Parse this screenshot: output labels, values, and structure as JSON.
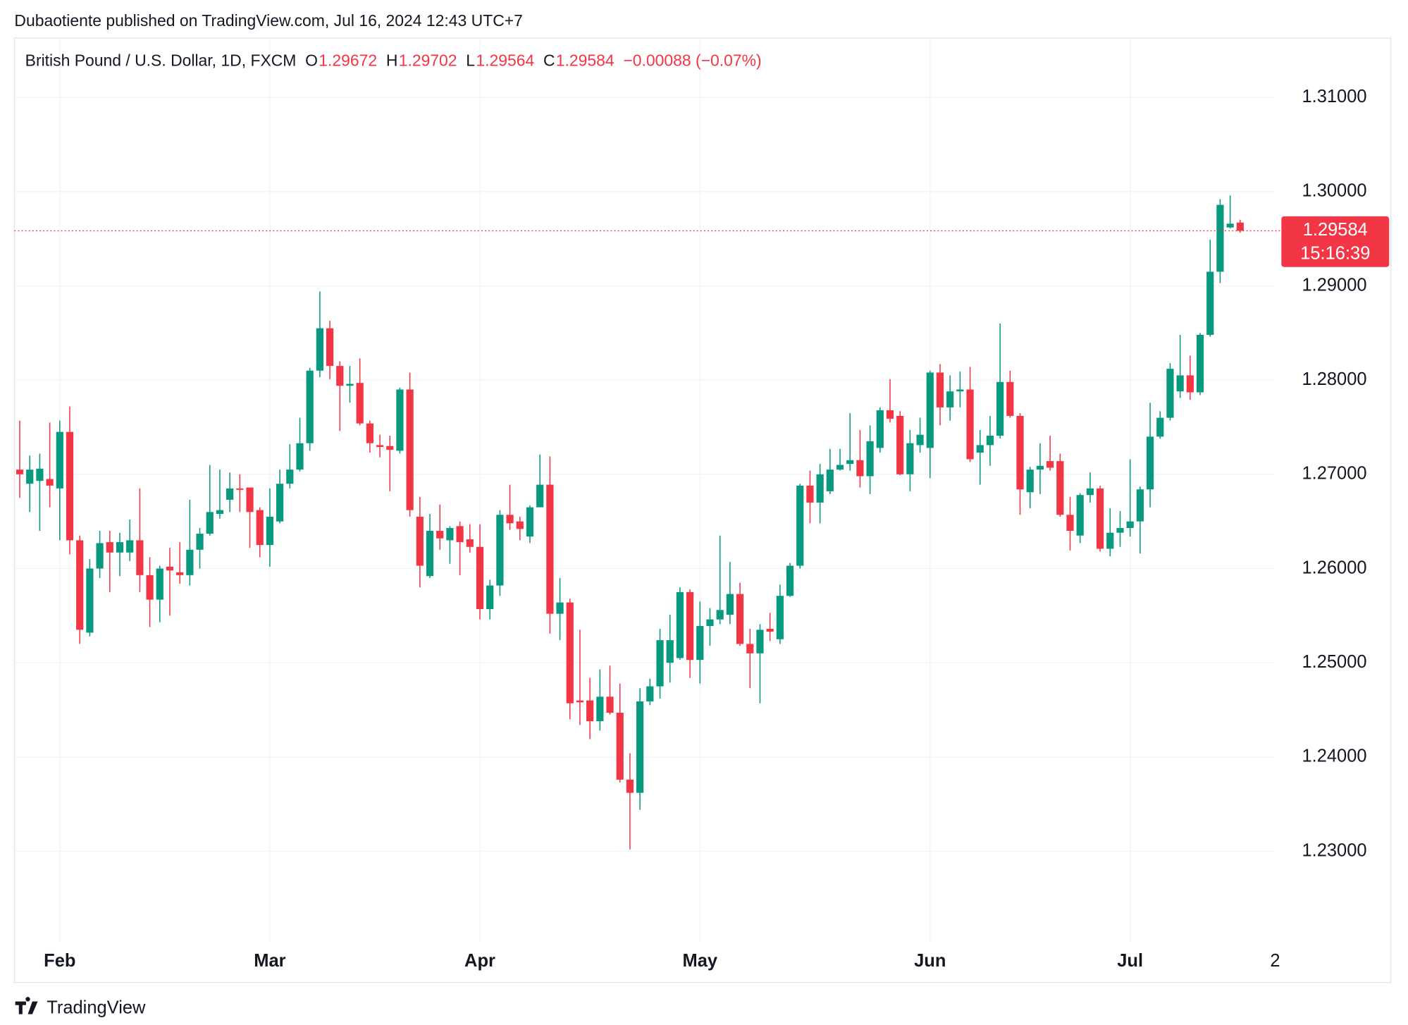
{
  "attribution": "Dubaotiente published on TradingView.com, Jul 16, 2024 12:43 UTC+7",
  "brand": "TradingView",
  "chart_data": {
    "type": "candlestick",
    "title": "British Pound / U.S. Dollar, 1D, FXCM",
    "ohlc_labels": [
      "O",
      "H",
      "L",
      "C"
    ],
    "change": "−0.00088 (−0.07%)",
    "countdown": "15:16:39",
    "future_tick_label": "2",
    "up_color": "#089981",
    "down_color": "#f23645",
    "grid": true,
    "ylim": [
      1.2204,
      1.3163
    ],
    "yticks": [
      {
        "value": 1.23,
        "label": "1.23000"
      },
      {
        "value": 1.24,
        "label": "1.24000"
      },
      {
        "value": 1.25,
        "label": "1.25000"
      },
      {
        "value": 1.26,
        "label": "1.26000"
      },
      {
        "value": 1.27,
        "label": "1.27000"
      },
      {
        "value": 1.28,
        "label": "1.28000"
      },
      {
        "value": 1.29,
        "label": "1.29000"
      },
      {
        "value": 1.3,
        "label": "1.30000"
      },
      {
        "value": 1.31,
        "label": "1.31000"
      }
    ],
    "categories": [
      null,
      null,
      null,
      null,
      "Feb",
      null,
      null,
      null,
      null,
      null,
      null,
      null,
      null,
      null,
      null,
      null,
      null,
      null,
      null,
      null,
      null,
      null,
      null,
      null,
      null,
      "Mar",
      null,
      null,
      null,
      null,
      null,
      null,
      null,
      null,
      null,
      null,
      null,
      null,
      null,
      null,
      null,
      null,
      null,
      null,
      null,
      null,
      "Apr",
      null,
      null,
      null,
      null,
      null,
      null,
      null,
      null,
      null,
      null,
      null,
      null,
      null,
      null,
      null,
      null,
      null,
      null,
      null,
      null,
      null,
      "May",
      null,
      null,
      null,
      null,
      null,
      null,
      null,
      null,
      null,
      null,
      null,
      null,
      null,
      null,
      null,
      null,
      null,
      null,
      null,
      null,
      null,
      null,
      "Jun",
      null,
      null,
      null,
      null,
      null,
      null,
      null,
      null,
      null,
      null,
      null,
      null,
      null,
      null,
      null,
      null,
      null,
      null,
      null,
      "Jul",
      null,
      null,
      null,
      null,
      null,
      null,
      null,
      null,
      null,
      null,
      null
    ],
    "open": [
      1.2705,
      1.269,
      1.2693,
      1.2695,
      1.2685,
      1.2745,
      1.263,
      1.2532,
      1.26,
      1.2628,
      1.2617,
      1.2617,
      1.263,
      1.2593,
      1.2567,
      1.2602,
      1.2596,
      1.2593,
      1.262,
      1.2637,
      1.2658,
      1.2673,
      1.2685,
      1.2686,
      1.2662,
      1.2625,
      1.265,
      1.269,
      1.2705,
      1.2733,
      1.281,
      1.2855,
      1.2815,
      1.2794,
      1.2797,
      1.2754,
      1.2731,
      1.273,
      1.2725,
      1.279,
      1.2655,
      1.2592,
      1.264,
      1.263,
      1.2645,
      1.2631,
      1.2623,
      1.2557,
      1.2582,
      1.2657,
      1.265,
      1.2634,
      1.2665,
      1.2689,
      1.2552,
      1.2564,
      1.246,
      1.246,
      1.2438,
      1.2464,
      1.2447,
      1.2376,
      1.2362,
      1.2459,
      1.2475,
      1.25,
      1.2505,
      1.2575,
      1.2503,
      1.2539,
      1.2546,
      1.2551,
      1.2573,
      1.252,
      1.251,
      1.2536,
      1.2525,
      1.2571,
      1.2603,
      1.2688,
      1.267,
      1.2682,
      1.2705,
      1.2711,
      1.2715,
      1.2698,
      1.2728,
      1.2768,
      1.2762,
      1.27,
      1.2731,
      1.2728,
      1.2808,
      1.2771,
      1.2788,
      1.279,
      1.2723,
      1.2731,
      1.2741,
      1.2798,
      1.2762,
      1.2681,
      1.2705,
      1.2714,
      1.2714,
      1.2657,
      1.2635,
      1.2678,
      1.2685,
      1.2621,
      1.2638,
      1.2643,
      1.265,
      1.2684,
      1.274,
      1.276,
      1.2788,
      1.2805,
      1.2787,
      1.2848,
      1.2915,
      1.2962,
      1.29672
    ],
    "high": [
      1.2757,
      1.272,
      1.2722,
      1.2755,
      1.2757,
      1.2772,
      1.2635,
      1.261,
      1.264,
      1.264,
      1.2638,
      1.2652,
      1.2685,
      1.2612,
      1.2603,
      1.2622,
      1.2628,
      1.2673,
      1.2643,
      1.271,
      1.2705,
      1.2702,
      1.27,
      1.2686,
      1.2665,
      1.2685,
      1.2705,
      1.2732,
      1.276,
      1.2813,
      1.2894,
      1.2863,
      1.282,
      1.2815,
      1.2823,
      1.2757,
      1.2742,
      1.2741,
      1.2792,
      1.2808,
      1.2676,
      1.2658,
      1.2668,
      1.2645,
      1.265,
      1.2647,
      1.2647,
      1.2588,
      1.2662,
      1.2689,
      1.2655,
      1.2667,
      1.2721,
      1.2719,
      1.259,
      1.2568,
      1.2535,
      1.2484,
      1.2493,
      1.2497,
      1.2478,
      1.2404,
      1.2473,
      1.2483,
      1.2536,
      1.2551,
      1.258,
      1.2578,
      1.2565,
      1.2558,
      1.2635,
      1.2607,
      1.2585,
      1.2536,
      1.2541,
      1.2553,
      1.2583,
      1.2606,
      1.269,
      1.2704,
      1.2711,
      1.2727,
      1.2727,
      1.2765,
      1.2747,
      1.2752,
      1.2771,
      1.2801,
      1.2767,
      1.2747,
      1.276,
      1.281,
      1.2817,
      1.2805,
      1.2809,
      1.2814,
      1.2747,
      1.2762,
      1.286,
      1.281,
      1.2765,
      1.2708,
      1.2733,
      1.2741,
      1.2722,
      1.2676,
      1.268,
      1.2702,
      1.2688,
      1.2664,
      1.2661,
      1.2716,
      1.2687,
      1.2776,
      1.2767,
      1.2818,
      1.2848,
      1.2826,
      1.285,
      1.2949,
      1.2992,
      1.2996,
      1.29702
    ],
    "low": [
      1.2675,
      1.266,
      1.264,
      1.2665,
      1.263,
      1.2615,
      1.252,
      1.2528,
      1.259,
      1.2575,
      1.2592,
      1.2608,
      1.2575,
      1.2538,
      1.2543,
      1.255,
      1.2584,
      1.2582,
      1.26,
      1.2635,
      1.2653,
      1.266,
      1.266,
      1.2622,
      1.2612,
      1.2602,
      1.2648,
      1.2685,
      1.2703,
      1.2725,
      1.2803,
      1.2801,
      1.2746,
      1.2776,
      1.2752,
      1.2723,
      1.2718,
      1.2682,
      1.2722,
      1.2655,
      1.258,
      1.259,
      1.262,
      1.2605,
      1.2593,
      1.2617,
      1.2546,
      1.2546,
      1.2571,
      1.2641,
      1.263,
      1.2627,
      1.2667,
      1.2531,
      1.2524,
      1.244,
      1.2434,
      1.2419,
      1.2428,
      1.2445,
      1.2373,
      1.2302,
      1.2344,
      1.2455,
      1.2462,
      1.2479,
      1.2503,
      1.2484,
      1.2478,
      1.2518,
      1.2541,
      1.2541,
      1.2518,
      1.2473,
      1.2457,
      1.2523,
      1.252,
      1.257,
      1.26,
      1.2648,
      1.2648,
      1.2679,
      1.2704,
      1.2704,
      1.2686,
      1.2679,
      1.2723,
      1.2755,
      1.2699,
      1.2682,
      1.2723,
      1.2696,
      1.2752,
      1.2757,
      1.2771,
      1.2713,
      1.2689,
      1.2709,
      1.2738,
      1.276,
      1.2657,
      1.2664,
      1.2679,
      1.2704,
      1.2655,
      1.2619,
      1.2627,
      1.267,
      1.2618,
      1.2613,
      1.2623,
      1.2634,
      1.2616,
      1.2665,
      1.2738,
      1.2757,
      1.2781,
      1.2779,
      1.2784,
      1.2846,
      1.2903,
      1.2961,
      1.29564
    ],
    "close": [
      1.27,
      1.2705,
      1.2706,
      1.2688,
      1.2745,
      1.263,
      1.2535,
      1.26,
      1.2627,
      1.2617,
      1.2628,
      1.263,
      1.2593,
      1.2567,
      1.26,
      1.2598,
      1.2593,
      1.262,
      1.2637,
      1.266,
      1.2662,
      1.2685,
      1.2684,
      1.266,
      1.2625,
      1.2655,
      1.269,
      1.2705,
      1.2733,
      1.281,
      1.2855,
      1.2815,
      1.2794,
      1.2796,
      1.2754,
      1.2733,
      1.2729,
      1.2726,
      1.279,
      1.2662,
      1.2603,
      1.264,
      1.2632,
      1.2643,
      1.2628,
      1.2623,
      1.2557,
      1.2582,
      1.2657,
      1.2648,
      1.2642,
      1.2665,
      1.2689,
      1.2552,
      1.2564,
      1.2457,
      1.2458,
      1.2438,
      1.2464,
      1.2447,
      1.2376,
      1.2362,
      1.2459,
      1.2475,
      1.2524,
      1.2524,
      1.2575,
      1.2503,
      1.2539,
      1.2546,
      1.2556,
      1.2573,
      1.252,
      1.251,
      1.2535,
      1.2533,
      1.2571,
      1.2603,
      1.2688,
      1.267,
      1.27,
      1.2705,
      1.271,
      1.2715,
      1.2698,
      1.2735,
      1.2768,
      1.2759,
      1.27,
      1.2733,
      1.2742,
      1.2808,
      1.2771,
      1.2788,
      1.279,
      1.2716,
      1.2731,
      1.2741,
      1.2798,
      1.2762,
      1.2684,
      1.2705,
      1.2709,
      1.2707,
      1.2657,
      1.264,
      1.2678,
      1.2685,
      1.2621,
      1.2638,
      1.2643,
      1.265,
      1.2684,
      1.274,
      1.276,
      1.2812,
      1.2805,
      1.2787,
      1.2848,
      1.2915,
      1.2986,
      1.2966,
      1.29584
    ]
  }
}
